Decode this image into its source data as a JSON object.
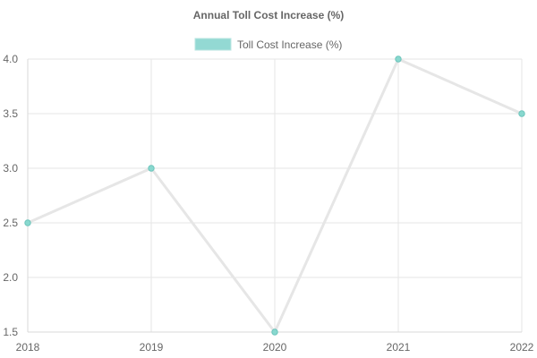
{
  "chart_data": {
    "type": "line",
    "title": "Annual Toll Cost Increase (%)",
    "categories": [
      "2018",
      "2019",
      "2020",
      "2021",
      "2022"
    ],
    "series": [
      {
        "name": "Toll Cost Increase (%)",
        "values": [
          2.5,
          3.0,
          1.5,
          4.0,
          3.5
        ]
      }
    ],
    "ylim": [
      1.5,
      4.0
    ],
    "yticks": [
      "1.5",
      "2.0",
      "2.5",
      "3.0",
      "3.5",
      "4.0"
    ],
    "legend_position": "top-center",
    "grid": true,
    "colors": {
      "line": "#e6e6e6",
      "point_fill": "#88d8cf",
      "point_stroke": "#6cc4bb",
      "legend_box_fill": "#93d9d3",
      "legend_box_stroke": "#b8e5e1"
    }
  }
}
